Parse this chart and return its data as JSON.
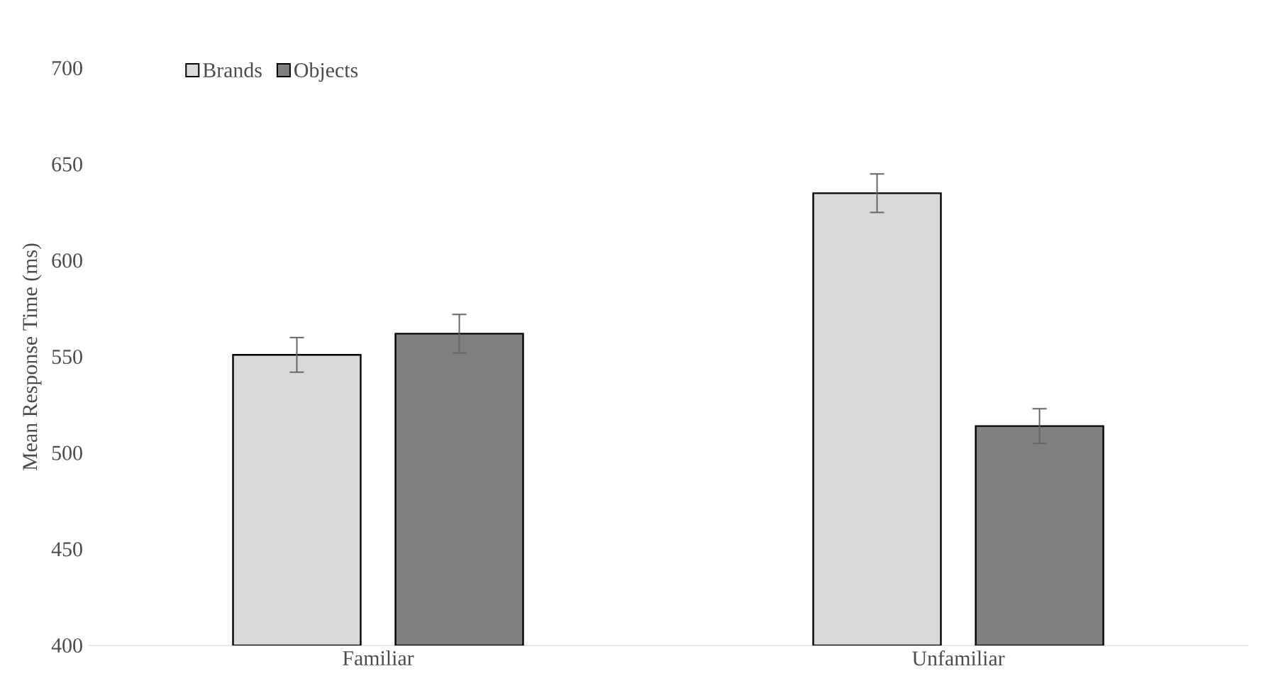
{
  "chart_data": {
    "type": "bar",
    "ylabel": "Mean Response Time (ms)",
    "categories": [
      "Familiar",
      "Unfamiliar"
    ],
    "series": [
      {
        "name": "Brands",
        "color": "#d9d9d9",
        "values": [
          551,
          635
        ],
        "errors": [
          9,
          10
        ]
      },
      {
        "name": "Objects",
        "color": "#808080",
        "values": [
          562,
          514
        ],
        "errors": [
          10,
          9
        ]
      }
    ],
    "ylim": [
      400,
      700
    ],
    "yticks": [
      400,
      450,
      500,
      550,
      600,
      650,
      700
    ],
    "legend": "top left"
  }
}
